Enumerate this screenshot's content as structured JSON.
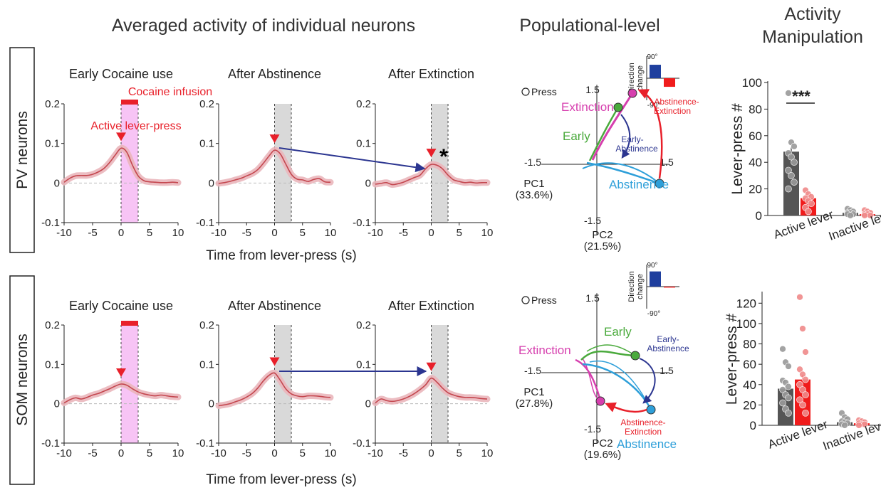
{
  "headers": {
    "averaged": "Averaged activity of individual neurons",
    "population": "Populational-level",
    "manip_line1": "Activity",
    "manip_line2": "Manipulation"
  },
  "rows": {
    "pv": "PV neurons",
    "som": "SOM neurons"
  },
  "shared_axis": {
    "xlabel": "Time from lever-press (s)",
    "xticks": [
      "-10",
      "-5",
      "0",
      "5",
      "10"
    ]
  },
  "colors": {
    "trace": "#c4474f",
    "band": "#eab6bb",
    "pink_window": "#f7c4f5",
    "grey_window": "#d9d9d9",
    "red_marker": "#e8202a",
    "arrow_blue": "#2b3590",
    "early": "#4aaa3c",
    "extinction": "#d63fae",
    "abstinence": "#2e9fd9",
    "dark_bar": "#555555",
    "red_bar": "#f01c1c",
    "blue_bar": "#1f3f9e",
    "asterisk": "#000000"
  },
  "annotations": {
    "cocaine_infusion": "Cocaine infusion",
    "active_lever_press": "Active lever-press",
    "significance_star": "*"
  },
  "chart_data": [
    {
      "id": "pv-early",
      "type": "line",
      "title": "Early Cocaine use",
      "xlim": [
        -10,
        10
      ],
      "ylim": [
        -0.1,
        0.2
      ],
      "yticks": [
        "0.2",
        "0.1",
        "0",
        "-0.1"
      ],
      "window": {
        "start": 0,
        "end": 3,
        "kind": "pink"
      },
      "marker": {
        "x": 0
      },
      "series": {
        "x": [
          -10,
          -9,
          -8,
          -7,
          -6,
          -5,
          -4,
          -3,
          -2,
          -1,
          0,
          1,
          2,
          3,
          4,
          5,
          6,
          7,
          8,
          9,
          10
        ],
        "y": [
          0.002,
          0.012,
          0.018,
          0.019,
          0.019,
          0.022,
          0.028,
          0.037,
          0.052,
          0.071,
          0.088,
          0.078,
          0.045,
          0.018,
          0.006,
          0.003,
          0.002,
          0.001,
          0.001,
          0.002,
          0.001
        ]
      }
    },
    {
      "id": "pv-abstinence",
      "type": "line",
      "title": "After Abstinence",
      "xlim": [
        -10,
        10
      ],
      "ylim": [
        -0.1,
        0.2
      ],
      "yticks": [
        "0.2",
        "0.1",
        "0",
        "-0.1"
      ],
      "window": {
        "start": 0,
        "end": 3,
        "kind": "grey"
      },
      "marker": {
        "x": 0
      },
      "series": {
        "x": [
          -10,
          -9,
          -8,
          -7,
          -6,
          -5,
          -4,
          -3,
          -2,
          -1,
          0,
          1,
          2,
          3,
          4,
          5,
          6,
          7,
          8,
          9,
          10
        ],
        "y": [
          -0.001,
          0.001,
          0.004,
          0.008,
          0.012,
          0.018,
          0.024,
          0.034,
          0.05,
          0.068,
          0.083,
          0.074,
          0.048,
          0.022,
          0.01,
          0.008,
          0.004,
          0.009,
          0.011,
          0.003,
          0.002
        ]
      }
    },
    {
      "id": "pv-extinction",
      "type": "line",
      "title": "After Extinction",
      "xlim": [
        -10,
        10
      ],
      "ylim": [
        -0.1,
        0.2
      ],
      "yticks": [
        "0.2",
        "0.1",
        "0",
        "-0.1"
      ],
      "window": {
        "start": 0,
        "end": 3,
        "kind": "grey"
      },
      "marker": {
        "x": 0
      },
      "star": true,
      "series": {
        "x": [
          -10,
          -9,
          -8,
          -7,
          -6,
          -5,
          -4,
          -3,
          -2,
          -1,
          0,
          1,
          2,
          3,
          4,
          5,
          6,
          7,
          8,
          9,
          10
        ],
        "y": [
          -0.003,
          -0.001,
          0.001,
          -0.004,
          -0.002,
          0.002,
          0.008,
          0.014,
          0.02,
          0.036,
          0.047,
          0.045,
          0.036,
          0.02,
          0.008,
          0.004,
          0.001,
          0.002,
          0.0,
          0.001,
          0.001
        ]
      }
    },
    {
      "id": "som-early",
      "type": "line",
      "title": "Early Cocaine use",
      "xlim": [
        -10,
        10
      ],
      "ylim": [
        -0.1,
        0.2
      ],
      "yticks": [
        "0.2",
        "0.1",
        "0",
        "-0.1"
      ],
      "window": {
        "start": 0,
        "end": 3,
        "kind": "pink"
      },
      "marker": {
        "x": 0
      },
      "series": {
        "x": [
          -10,
          -9,
          -8,
          -7,
          -6,
          -5,
          -4,
          -3,
          -2,
          -1,
          0,
          1,
          2,
          3,
          4,
          5,
          6,
          7,
          8,
          9,
          10
        ],
        "y": [
          0.002,
          0.01,
          0.015,
          0.012,
          0.016,
          0.022,
          0.026,
          0.032,
          0.038,
          0.045,
          0.05,
          0.047,
          0.038,
          0.03,
          0.025,
          0.022,
          0.02,
          0.022,
          0.02,
          0.018,
          0.017
        ]
      }
    },
    {
      "id": "som-abstinence",
      "type": "line",
      "title": "After Abstinence",
      "xlim": [
        -10,
        10
      ],
      "ylim": [
        -0.1,
        0.2
      ],
      "yticks": [
        "0.2",
        "0.1",
        "0",
        "-0.1"
      ],
      "window": {
        "start": 0,
        "end": 3,
        "kind": "grey"
      },
      "marker": {
        "x": 0
      },
      "series": {
        "x": [
          -10,
          -9,
          -8,
          -7,
          -6,
          -5,
          -4,
          -3,
          -2,
          -1,
          0,
          1,
          2,
          3,
          4,
          5,
          6,
          7,
          8,
          9,
          10
        ],
        "y": [
          -0.005,
          -0.003,
          0.0,
          0.005,
          0.01,
          0.017,
          0.026,
          0.04,
          0.058,
          0.072,
          0.078,
          0.06,
          0.038,
          0.025,
          0.02,
          0.018,
          0.02,
          0.02,
          0.019,
          0.017,
          0.016
        ]
      }
    },
    {
      "id": "som-extinction",
      "type": "line",
      "title": "After Extinction",
      "xlim": [
        -10,
        10
      ],
      "ylim": [
        -0.1,
        0.2
      ],
      "yticks": [
        "0.2",
        "0.1",
        "0",
        "-0.1"
      ],
      "window": {
        "start": 0,
        "end": 3,
        "kind": "grey"
      },
      "marker": {
        "x": 0
      },
      "series": {
        "x": [
          -10,
          -9,
          -8,
          -7,
          -6,
          -5,
          -4,
          -3,
          -2,
          -1,
          0,
          1,
          2,
          3,
          4,
          5,
          6,
          7,
          8,
          9,
          10
        ],
        "y": [
          0.002,
          0.012,
          0.008,
          0.006,
          0.008,
          0.012,
          0.018,
          0.026,
          0.036,
          0.048,
          0.065,
          0.055,
          0.04,
          0.028,
          0.022,
          0.018,
          0.016,
          0.016,
          0.015,
          0.013,
          0.012
        ]
      }
    },
    {
      "id": "pv-pca",
      "type": "line",
      "subtype": "trajectory",
      "press_label": "Press",
      "axis_pos": "1.5",
      "axis_neg": "-1.5",
      "pc1_label": "PC1",
      "pc1_pct": "(33.6%)",
      "pc2_label": "PC2",
      "pc2_pct": "(21.5%)",
      "labels": {
        "extinction": "Extinction",
        "early": "Early",
        "abstinence": "Abstinence",
        "early_abstinence_1": "Early-",
        "early_abstinence_2": "Abstinence",
        "abst_ext_1": "Abstinence-",
        "abst_ext_2": "Extinction"
      },
      "inset": {
        "ylabel_1": "Direction",
        "ylabel_2": "change",
        "top": "90°",
        "bottom": "-90°",
        "bars": [
          {
            "name": "Early-Abstinence",
            "value": 55
          },
          {
            "name": "Abstinence-Extinction",
            "value": -35
          }
        ]
      }
    },
    {
      "id": "som-pca",
      "type": "line",
      "subtype": "trajectory",
      "press_label": "Press",
      "axis_pos": "1.5",
      "axis_neg": "-1.5",
      "pc1_label": "PC1",
      "pc1_pct": "(27.8%)",
      "pc2_label": "PC2",
      "pc2_pct": "(19.6%)",
      "labels": {
        "extinction": "Extinction",
        "early": "Early",
        "abstinence": "Abstinence",
        "early_abstinence_1": "Early-",
        "early_abstinence_2": "Abstinence",
        "abst_ext_1": "Abstinence-",
        "abst_ext_2": "Extinction"
      },
      "inset": {
        "ylabel_1": "Direction",
        "ylabel_2": "change",
        "top": "90°",
        "bottom": "-90°",
        "bars": [
          {
            "name": "Early-Abstinence",
            "value": 62
          },
          {
            "name": "Abstinence-Extinction",
            "value": -4
          }
        ]
      }
    },
    {
      "id": "pv-lever",
      "type": "bar",
      "ylabel": "Lever-press #",
      "ylim": [
        0,
        100
      ],
      "yticks": [
        "100",
        "80",
        "60",
        "40",
        "20",
        "0"
      ],
      "categories": [
        "Active lever",
        "Inactive lever"
      ],
      "series": [
        {
          "name": "dark",
          "values": [
            48,
            2
          ],
          "points": [
            [
              92,
              55,
              52,
              47,
              44,
              40,
              34,
              30,
              25,
              20
            ],
            [
              5,
              4,
              3,
              2,
              2,
              1,
              1,
              0
            ]
          ]
        },
        {
          "name": "red",
          "values": [
            13,
            1
          ],
          "points": [
            [
              19,
              16,
              14,
              13,
              11,
              9,
              6,
              3
            ],
            [
              4,
              3,
              2,
              1,
              1,
              0,
              0
            ]
          ]
        }
      ],
      "significance": "***"
    },
    {
      "id": "som-lever",
      "type": "bar",
      "ylabel": "Lever-press #",
      "ylim": [
        0,
        130
      ],
      "yticks": [
        "120",
        "100",
        "80",
        "60",
        "40",
        "20",
        "0"
      ],
      "categories": [
        "Active lever",
        "Inactive lever"
      ],
      "series": [
        {
          "name": "dark",
          "values": [
            36,
            3
          ],
          "points": [
            [
              75,
              62,
              58,
              44,
              42,
              38,
              35,
              30,
              27,
              22,
              16,
              12
            ],
            [
              12,
              8,
              6,
              4,
              3,
              2,
              1,
              0
            ]
          ]
        },
        {
          "name": "red",
          "values": [
            45,
            2
          ],
          "points": [
            [
              126,
              95,
              72,
              55,
              50,
              45,
              40,
              35,
              30,
              25,
              20,
              12
            ],
            [
              5,
              4,
              3,
              2,
              1,
              1,
              0
            ]
          ]
        }
      ]
    }
  ]
}
